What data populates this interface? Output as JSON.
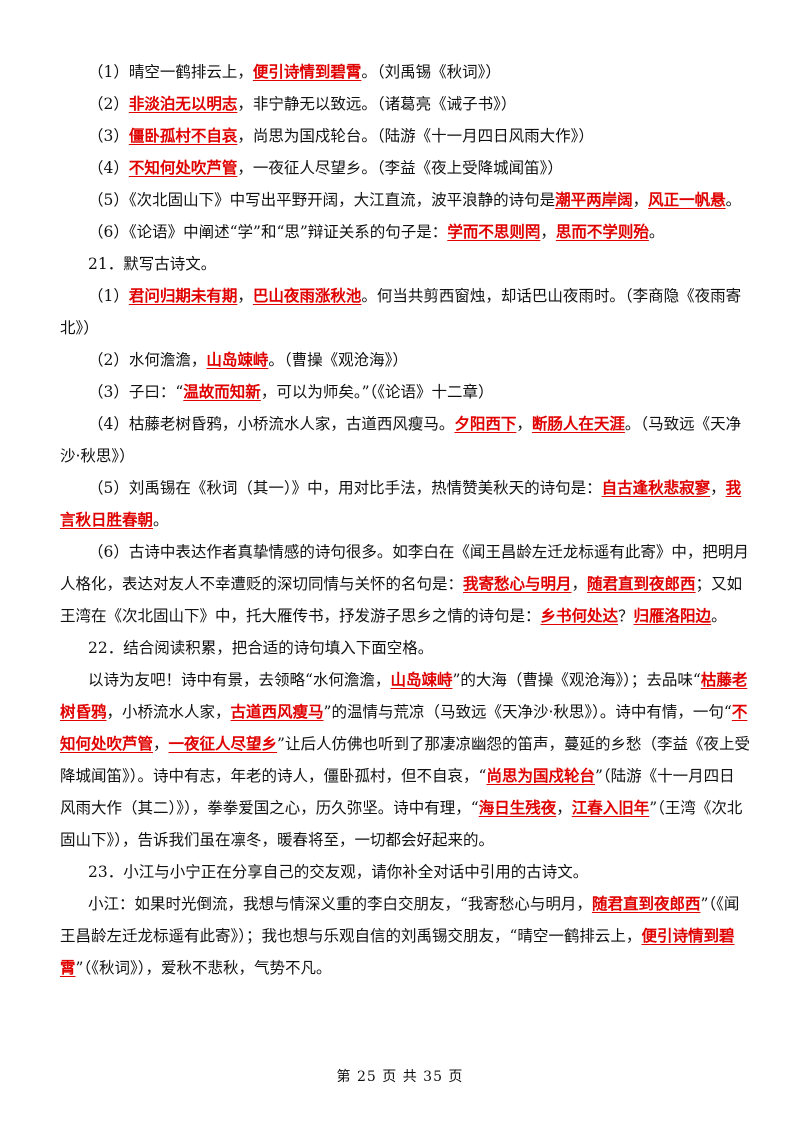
{
  "colors": {
    "answer": "#e00000",
    "text": "#111111"
  },
  "lines": [
    [
      {
        "t": "（1）晴空一鹤排云上，"
      },
      {
        "t": "便引诗情到碧霄",
        "a": 1
      },
      {
        "t": "。（刘禹锡《秋词》）"
      }
    ],
    [
      {
        "t": "（2）"
      },
      {
        "t": "非淡泊无以明志",
        "a": 1
      },
      {
        "t": "，非宁静无以致远。（诸葛亮《诫子书》）"
      }
    ],
    [
      {
        "t": "（3）"
      },
      {
        "t": "僵卧孤村不自哀",
        "a": 1
      },
      {
        "t": "，尚思为国戍轮台。（陆游《十一月四日风雨大作》）"
      }
    ],
    [
      {
        "t": "（4）"
      },
      {
        "t": "不知何处吹芦管",
        "a": 1
      },
      {
        "t": "，一夜征人尽望乡。（李益《夜上受降城闻笛》）"
      }
    ],
    [
      {
        "t": "（5）《次北固山下》中写出平野开阔，大江直流，波平浪静的诗句是"
      },
      {
        "t": "潮平两岸阔",
        "a": 1
      },
      {
        "t": "，"
      },
      {
        "t": "风正一帆悬",
        "a": 1
      },
      {
        "t": "。"
      }
    ],
    [
      {
        "t": "（6）《论语》中阐述“学”和“思”辩证关系的句子是："
      },
      {
        "t": "学而不思则罔",
        "a": 1
      },
      {
        "t": "，"
      },
      {
        "t": "思而不学则殆",
        "a": 1
      },
      {
        "t": "。"
      }
    ],
    [
      {
        "t": "21．默写古诗文。"
      }
    ],
    [
      {
        "t": "（1）"
      },
      {
        "t": "君问归期未有期",
        "a": 1
      },
      {
        "t": "，"
      },
      {
        "t": "巴山夜雨涨秋池",
        "a": 1
      },
      {
        "t": "。何当共剪西窗烛，却话巴山夜雨时。（李商隐《夜雨寄北》）"
      }
    ],
    [
      {
        "t": "（2）水何澹澹，"
      },
      {
        "t": "山岛竦峙",
        "a": 1
      },
      {
        "t": "。（曹操《观沧海》）"
      }
    ],
    [
      {
        "t": "（3）子曰：“"
      },
      {
        "t": "温故而知新",
        "a": 1
      },
      {
        "t": "，可以为师矣。”（《论语》十二章）"
      }
    ],
    [
      {
        "t": "（4）枯藤老树昏鸦，小桥流水人家，古道西风瘦马。"
      },
      {
        "t": "夕阳西下",
        "a": 1
      },
      {
        "t": "，"
      },
      {
        "t": "断肠人在天涯",
        "a": 1
      },
      {
        "t": "。（马致远《天净沙·秋思》）"
      }
    ],
    [
      {
        "t": "（5）刘禹锡在《秋词（其一）》中，用对比手法，热情赞美秋天的诗句是："
      },
      {
        "t": "自古逢秋悲寂寥",
        "a": 1
      },
      {
        "t": "，"
      },
      {
        "t": "我言秋日胜春朝",
        "a": 1
      },
      {
        "t": "。"
      }
    ],
    [
      {
        "t": "（6）古诗中表达作者真挚情感的诗句很多。如李白在《闻王昌龄左迁龙标遥有此寄》中，把明月人格化，表达对友人不幸遭贬的深切同情与关怀的名句是："
      },
      {
        "t": "我寄愁心与明月",
        "a": 1
      },
      {
        "t": "，"
      },
      {
        "t": "随君直到夜郎西",
        "a": 1
      },
      {
        "t": "；又如王湾在《次北固山下》中，托大雁传书，抒发游子思乡之情的诗句是："
      },
      {
        "t": "乡书何处达",
        "a": 1
      },
      {
        "t": "？"
      },
      {
        "t": "归雁洛阳边",
        "a": 1
      },
      {
        "t": "。"
      }
    ],
    [
      {
        "t": "22．结合阅读积累，把合适的诗句填入下面空格。"
      }
    ],
    [
      {
        "t": "以诗为友吧！诗中有景，去领略“水何澹澹，"
      },
      {
        "t": "山岛竦峙",
        "a": 1
      },
      {
        "t": "”的大海（曹操《观沧海》）；去品味“"
      },
      {
        "t": "枯藤老树昏鸦",
        "a": 1
      },
      {
        "t": "，小桥流水人家，"
      },
      {
        "t": "古道西风瘦马",
        "a": 1
      },
      {
        "t": "”的温情与荒凉（马致远《天净沙·秋思》）。诗中有情，一句“"
      },
      {
        "t": "不知何处吹芦管",
        "a": 1
      },
      {
        "t": "，"
      },
      {
        "t": "一夜征人尽望乡",
        "a": 1
      },
      {
        "t": "”让后人仿佛也听到了那凄凉幽怨的笛声，蔓延的乡愁（李益《夜上受降城闻笛》）。诗中有志，年老的诗人，僵卧孤村，但不自哀，“"
      },
      {
        "t": "尚思为国戍轮台",
        "a": 1
      },
      {
        "t": "”（陆游《十一月四日风雨大作（其二）》），拳拳爱国之心，历久弥坚。诗中有理，“"
      },
      {
        "t": "海日生残夜",
        "a": 1
      },
      {
        "t": "，"
      },
      {
        "t": "江春入旧年",
        "a": 1
      },
      {
        "t": "”（王湾《次北固山下》），告诉我们虽在凛冬，暖春将至，一切都会好起来的。"
      }
    ],
    [
      {
        "t": "23．小江与小宁正在分享自己的交友观，请你补全对话中引用的古诗文。"
      }
    ],
    [
      {
        "t": "小江：如果时光倒流，我想与情深义重的李白交朋友，“我寄愁心与明月，"
      },
      {
        "t": "随君直到夜郎西",
        "a": 1
      },
      {
        "t": "”（《闻王昌龄左迁龙标遥有此寄》）；我也想与乐观自信的刘禹锡交朋友，“晴空一鹤排云上，"
      },
      {
        "t": "便引诗情到碧霄",
        "a": 1
      },
      {
        "t": "”（《秋词》），爱秋不悲秋，气势不凡。"
      }
    ]
  ],
  "footer": "第 25 页 共 35 页"
}
